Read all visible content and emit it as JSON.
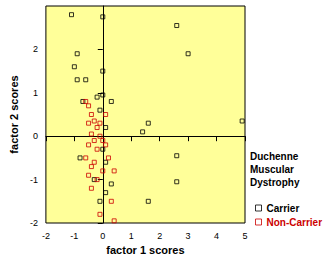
{
  "chart_data": {
    "type": "scatter",
    "xlabel": "factor 1 scores",
    "ylabel": "factor 2 scores",
    "legend_title": "Duchenne Muscular Dystrophy",
    "legend": "right",
    "marker": "square",
    "grid": false,
    "xlim": [
      -2,
      5
    ],
    "xticks": [
      -2,
      -1,
      0,
      1,
      2,
      3,
      4,
      5
    ],
    "ylim": [
      -2,
      3
    ],
    "yticks": [
      -2,
      -1,
      0,
      1,
      2
    ],
    "series": [
      {
        "name": "Carrier",
        "color": "#000000",
        "x": [
          -1.1,
          0,
          2.6,
          3,
          -0.9,
          -1,
          -0.9,
          -0.6,
          0,
          4.9,
          1.6,
          1.4,
          -0.7,
          -0.2,
          0,
          0.3,
          -0.1,
          0.1,
          2.6,
          1.6,
          2.6,
          -0.8,
          0,
          0.1,
          -0.3,
          0.1,
          -0.1,
          0.3
        ],
        "values": [
          2.8,
          2.75,
          2.55,
          1.9,
          1.9,
          1.6,
          1.3,
          1.3,
          1.5,
          0.35,
          0.3,
          0.1,
          0.8,
          0.9,
          0.95,
          0.8,
          0.6,
          0.2,
          -0.45,
          -1.5,
          -1.05,
          -0.5,
          -0.3,
          -0.6,
          -1.0,
          -1.3,
          -1.5,
          -1.1
        ]
      },
      {
        "name": "Non-Carrier",
        "color": "#cc0000",
        "x": [
          -0.6,
          -0.5,
          -0.4,
          -0.3,
          -0.5,
          -0.2,
          -0.4,
          -0.1,
          -0.3,
          0,
          -0.5,
          -0.2,
          0.1,
          -0.6,
          -0.4,
          -0.3,
          -0.5,
          -0.2,
          -0.4,
          0,
          0.2,
          -0.1,
          0.1,
          0.3,
          -0.1,
          0.4,
          0.4
        ],
        "values": [
          0.8,
          0.7,
          0.5,
          0.35,
          0.3,
          0.2,
          0.05,
          0.0,
          -0.1,
          -0.1,
          -0.2,
          -0.3,
          -0.2,
          -0.5,
          -0.7,
          -0.6,
          -0.9,
          -1.0,
          -1.2,
          -0.8,
          -0.5,
          0.3,
          0.5,
          -1.5,
          -1.8,
          -1.95,
          -0.8
        ]
      }
    ]
  }
}
